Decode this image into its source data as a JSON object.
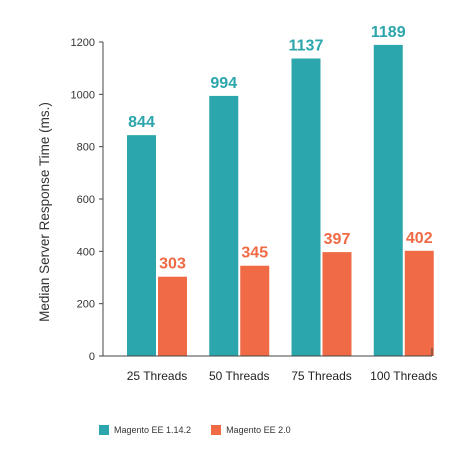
{
  "chart_data": {
    "type": "bar",
    "title": "",
    "xlabel": "",
    "ylabel": "Median Server Response Time (ms.)",
    "ylim": [
      0,
      1200
    ],
    "yticks": [
      0,
      200,
      400,
      600,
      800,
      1000,
      1200
    ],
    "categories": [
      "25 Threads",
      "50 Threads",
      "75 Threads",
      "100 Threads"
    ],
    "series": [
      {
        "name": "Magento EE 1.14.2",
        "color": "#2ba6ac",
        "values": [
          844,
          994,
          1137,
          1189
        ]
      },
      {
        "name": "Magento EE 2.0",
        "color": "#f06a45",
        "values": [
          303,
          345,
          397,
          402
        ]
      }
    ],
    "grid": false,
    "legend": "bottom"
  }
}
